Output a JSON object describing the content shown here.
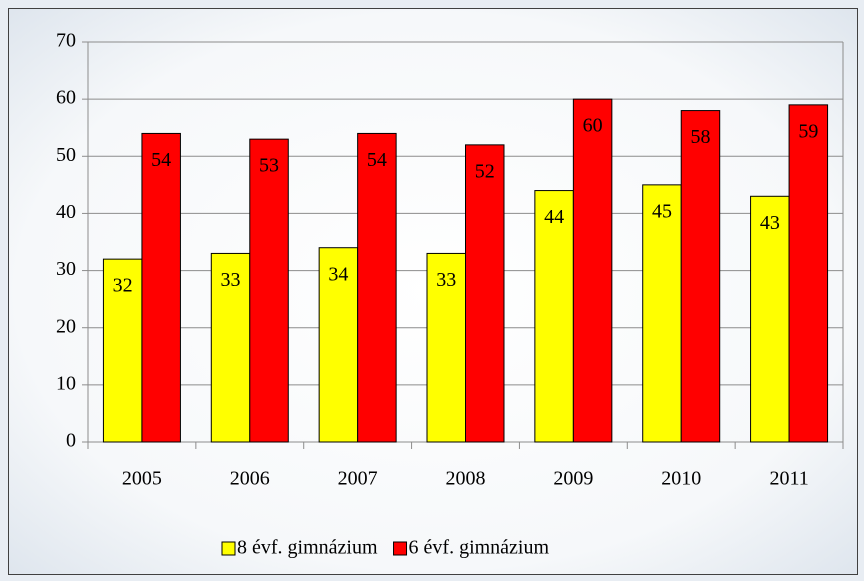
{
  "chart_data": {
    "type": "bar",
    "categories": [
      "2005",
      "2006",
      "2007",
      "2008",
      "2009",
      "2010",
      "2011"
    ],
    "series": [
      {
        "name": "8 évf. gimnázium",
        "color": "#ffff00",
        "values": [
          32,
          33,
          34,
          33,
          44,
          45,
          43
        ]
      },
      {
        "name": "6 évf. gimnázium",
        "color": "#ff0000",
        "values": [
          54,
          53,
          54,
          52,
          60,
          58,
          59
        ]
      }
    ],
    "ylim": [
      0,
      70
    ],
    "yticks": [
      0,
      10,
      20,
      30,
      40,
      50,
      60,
      70
    ],
    "grid": true,
    "legend": "bottom"
  }
}
